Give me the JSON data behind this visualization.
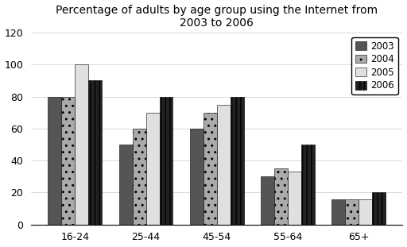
{
  "title": "Percentage of adults by age group using the Internet from\n2003 to 2006",
  "categories": [
    "16-24",
    "25-44",
    "45-54",
    "55-64",
    "65+"
  ],
  "years": [
    "2003",
    "2004",
    "2005",
    "2006"
  ],
  "values": {
    "2003": [
      80,
      50,
      60,
      30,
      16
    ],
    "2004": [
      80,
      60,
      70,
      35,
      16
    ],
    "2005": [
      100,
      70,
      75,
      33,
      16
    ],
    "2006": [
      90,
      80,
      80,
      50,
      20
    ]
  },
  "ylim": [
    0,
    120
  ],
  "yticks": [
    0,
    20,
    40,
    60,
    80,
    100,
    120
  ],
  "bar_colors": [
    "#555555",
    "#aaaaaa",
    "#e0e0e0",
    "#222222"
  ],
  "bar_hatches": [
    "",
    "..",
    "",
    "|||"
  ],
  "background_color": "#ffffff",
  "title_fontsize": 10,
  "legend_fontsize": 8.5,
  "tick_fontsize": 9
}
